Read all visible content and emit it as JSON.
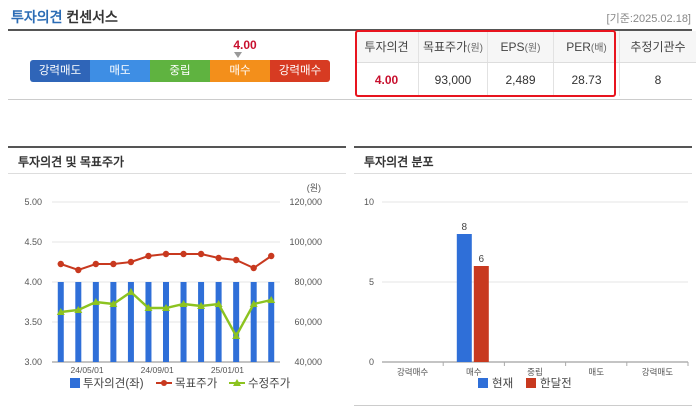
{
  "header": {
    "title_a": "투자의견",
    "title_b": "컨센서스",
    "date": "[기준:2025.02.18]"
  },
  "opinion_scale": {
    "labels": [
      "강력매도",
      "매도",
      "중립",
      "매수",
      "강력매수"
    ],
    "score": "4.00"
  },
  "consensus_table": {
    "headers": [
      "투자의견",
      "목표주가",
      "EPS",
      "PER",
      "추정기관수"
    ],
    "units": [
      "",
      "(원)",
      "(원)",
      "(배)",
      ""
    ],
    "values": [
      "4.00",
      "93,000",
      "2,489",
      "28.73",
      "8"
    ]
  },
  "panels": {
    "left_title": "투자의견 및 목표주가",
    "right_title": "투자의견 분포"
  },
  "colors": {
    "blue": "#2f6fd8",
    "red": "#c8391f",
    "green": "#8cc320",
    "accent_red": "#e8141e"
  },
  "chart_data": [
    {
      "type": "bar+line",
      "x_tick_labels": [
        "24/05/01",
        "24/09/01",
        "25/01/01"
      ],
      "y_left": {
        "ticks": [
          "5.00",
          "4.50",
          "4.00",
          "3.50",
          "3.00"
        ],
        "range": [
          3.0,
          5.0
        ]
      },
      "y_right": {
        "unit_label": "(원)",
        "ticks": [
          "120,000",
          "100,000",
          "80,000",
          "60,000",
          "40,000"
        ],
        "range": [
          40000,
          120000
        ]
      },
      "series": [
        {
          "name": "투자의견(좌)",
          "kind": "bar",
          "values": [
            4.0,
            4.0,
            4.0,
            4.0,
            4.0,
            4.0,
            4.0,
            4.0,
            4.0,
            4.0,
            4.0,
            4.0,
            4.0
          ]
        },
        {
          "name": "목표주가",
          "kind": "line",
          "values": [
            89000,
            86000,
            89000,
            89000,
            90000,
            93000,
            94000,
            94000,
            94000,
            92000,
            91000,
            87000,
            93000
          ]
        },
        {
          "name": "수정주가",
          "kind": "line",
          "values": [
            65000,
            66000,
            70000,
            69000,
            75000,
            67000,
            67000,
            69000,
            68000,
            69000,
            53000,
            69000,
            71000
          ]
        }
      ]
    },
    {
      "type": "bar",
      "categories": [
        "강력매수",
        "매수",
        "중립",
        "매도",
        "강력매도"
      ],
      "y_ticks": [
        "10",
        "5",
        "0"
      ],
      "y_range": [
        0,
        10
      ],
      "series": [
        {
          "name": "현재",
          "values": [
            0,
            8,
            0,
            0,
            0
          ]
        },
        {
          "name": "한달전",
          "values": [
            0,
            6,
            0,
            0,
            0
          ]
        }
      ]
    }
  ]
}
